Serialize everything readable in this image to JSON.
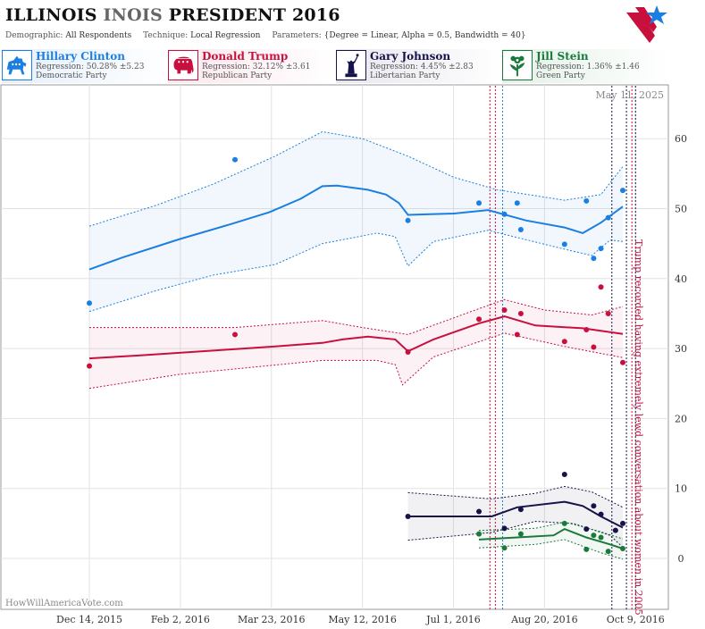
{
  "header": {
    "title_state": "ILLINOIS",
    "title_state_dup": "INOIS",
    "title_rest": "PRESIDENT 2016",
    "demographic_label": "Demographic:",
    "demographic_value": "All Respondents",
    "technique_label": "Technique:",
    "technique_value": "Local Regression",
    "parameters_label": "Parameters:",
    "parameters_value": "{Degree = Linear, Alpha = 0.5, Bandwidth = 40}"
  },
  "candidates": [
    {
      "name": "Hillary Clinton",
      "regression": "Regression: 50.28% ±5.23",
      "party": "Democratic Party",
      "color": "#1a7fe0",
      "icon": "donkey-icon"
    },
    {
      "name": "Donald Trump",
      "regression": "Regression: 32.12% ±3.61",
      "party": "Republican Party",
      "color": "#c8103e",
      "icon": "elephant-icon"
    },
    {
      "name": "Gary Johnson",
      "regression": "Regression: 4.45% ±2.83",
      "party": "Libertarian Party",
      "color": "#16134a",
      "icon": "liberty-statue-icon"
    },
    {
      "name": "Jill Stein",
      "regression": "Regression: 1.36% ±1.46",
      "party": "Green Party",
      "color": "#1a7a3c",
      "icon": "flower-icon"
    }
  ],
  "watermark": "HowWillAmericaVote.com",
  "date_stamp": "May 11, 2025",
  "chart_data": {
    "type": "scatter",
    "x_type": "date",
    "x_ticks": [
      "Dec 14, 2015",
      "Feb 2, 2016",
      "Mar 23, 2016",
      "May 12, 2016",
      "Jul 1, 2016",
      "Aug 20, 2016",
      "Oct 9, 2016"
    ],
    "y_ticks": [
      0,
      10,
      20,
      30,
      40,
      50,
      60
    ],
    "xlim": [
      "2015-12-14",
      "2016-11-08"
    ],
    "ylim": [
      -4,
      70
    ],
    "grid": true,
    "annotation": "Trump recorded having extremely lewd conversation about women in 2005",
    "series": [
      {
        "name": "Hillary Clinton",
        "color": "#1a7fe0",
        "points": [
          [
            "2015-12-14",
            36.5
          ],
          [
            "2016-03-03",
            57.0
          ],
          [
            "2016-06-06",
            48.3
          ],
          [
            "2016-07-15",
            50.8
          ],
          [
            "2016-07-29",
            49.2
          ],
          [
            "2016-08-05",
            50.8
          ],
          [
            "2016-08-07",
            47.0
          ],
          [
            "2016-08-31",
            44.9
          ],
          [
            "2016-09-12",
            51.1
          ],
          [
            "2016-09-16",
            42.9
          ],
          [
            "2016-09-20",
            44.3
          ],
          [
            "2016-09-24",
            48.7
          ],
          [
            "2016-10-02",
            52.6
          ]
        ],
        "trend": [
          [
            "2015-12-14",
            41.3
          ],
          [
            "2016-01-01",
            43.0
          ],
          [
            "2016-02-01",
            45.6
          ],
          [
            "2016-03-01",
            47.8
          ],
          [
            "2016-03-22",
            49.5
          ],
          [
            "2016-04-08",
            51.4
          ],
          [
            "2016-04-20",
            53.2
          ],
          [
            "2016-04-28",
            53.3
          ],
          [
            "2016-05-15",
            52.7
          ],
          [
            "2016-05-25",
            52.0
          ],
          [
            "2016-06-01",
            50.8
          ],
          [
            "2016-06-06",
            49.1
          ],
          [
            "2016-06-18",
            49.2
          ],
          [
            "2016-07-01",
            49.3
          ],
          [
            "2016-07-20",
            49.8
          ],
          [
            "2016-08-10",
            48.3
          ],
          [
            "2016-08-31",
            47.3
          ],
          [
            "2016-09-10",
            46.5
          ],
          [
            "2016-09-20",
            48.0
          ],
          [
            "2016-10-02",
            50.3
          ]
        ],
        "upper": [
          [
            "2015-12-14",
            47.5
          ],
          [
            "2016-01-20",
            50.5
          ],
          [
            "2016-02-20",
            53.5
          ],
          [
            "2016-03-25",
            57.5
          ],
          [
            "2016-04-20",
            61.0
          ],
          [
            "2016-05-12",
            60.0
          ],
          [
            "2016-06-06",
            57.5
          ],
          [
            "2016-07-01",
            54.5
          ],
          [
            "2016-07-25",
            52.7
          ],
          [
            "2016-08-31",
            51.2
          ],
          [
            "2016-09-20",
            52.0
          ],
          [
            "2016-10-02",
            56.0
          ]
        ],
        "lower": [
          [
            "2015-12-14",
            35.3
          ],
          [
            "2016-01-20",
            38.3
          ],
          [
            "2016-02-20",
            40.5
          ],
          [
            "2016-03-25",
            42.0
          ],
          [
            "2016-04-20",
            45.0
          ],
          [
            "2016-05-20",
            46.5
          ],
          [
            "2016-05-30",
            46.0
          ],
          [
            "2016-06-06",
            41.8
          ],
          [
            "2016-06-20",
            45.3
          ],
          [
            "2016-07-20",
            46.9
          ],
          [
            "2016-08-31",
            44.2
          ],
          [
            "2016-09-15",
            43.3
          ],
          [
            "2016-09-25",
            45.5
          ],
          [
            "2016-10-02",
            45.3
          ]
        ]
      },
      {
        "name": "Donald Trump",
        "color": "#c8103e",
        "points": [
          [
            "2015-12-14",
            27.5
          ],
          [
            "2016-03-03",
            32.0
          ],
          [
            "2016-06-06",
            29.5
          ],
          [
            "2016-07-15",
            34.2
          ],
          [
            "2016-07-29",
            35.5
          ],
          [
            "2016-08-05",
            32.0
          ],
          [
            "2016-08-07",
            35.0
          ],
          [
            "2016-08-31",
            31.0
          ],
          [
            "2016-09-12",
            32.7
          ],
          [
            "2016-09-16",
            30.2
          ],
          [
            "2016-09-20",
            38.8
          ],
          [
            "2016-09-24",
            35.0
          ],
          [
            "2016-10-02",
            28.0
          ]
        ],
        "trend": [
          [
            "2015-12-14",
            28.6
          ],
          [
            "2016-01-10",
            29.0
          ],
          [
            "2016-02-20",
            29.7
          ],
          [
            "2016-03-25",
            30.3
          ],
          [
            "2016-04-20",
            30.8
          ],
          [
            "2016-05-01",
            31.3
          ],
          [
            "2016-05-15",
            31.7
          ],
          [
            "2016-05-30",
            31.3
          ],
          [
            "2016-06-06",
            29.6
          ],
          [
            "2016-06-20",
            31.3
          ],
          [
            "2016-07-15",
            33.6
          ],
          [
            "2016-07-29",
            34.6
          ],
          [
            "2016-08-15",
            33.3
          ],
          [
            "2016-09-10",
            32.9
          ],
          [
            "2016-10-02",
            32.1
          ]
        ],
        "upper": [
          [
            "2015-12-14",
            33.0
          ],
          [
            "2016-03-03",
            33.0
          ],
          [
            "2016-04-20",
            34.0
          ],
          [
            "2016-05-12",
            33.0
          ],
          [
            "2016-06-06",
            32.0
          ],
          [
            "2016-07-15",
            35.7
          ],
          [
            "2016-07-29",
            37.0
          ],
          [
            "2016-08-20",
            35.5
          ],
          [
            "2016-09-15",
            34.8
          ],
          [
            "2016-10-02",
            36.0
          ]
        ],
        "lower": [
          [
            "2015-12-14",
            24.3
          ],
          [
            "2016-02-01",
            26.3
          ],
          [
            "2016-04-20",
            28.3
          ],
          [
            "2016-05-20",
            28.3
          ],
          [
            "2016-05-30",
            27.7
          ],
          [
            "2016-06-03",
            24.8
          ],
          [
            "2016-06-20",
            28.8
          ],
          [
            "2016-07-29",
            32.2
          ],
          [
            "2016-08-31",
            30.3
          ],
          [
            "2016-09-20",
            29.3
          ],
          [
            "2016-10-02",
            28.7
          ]
        ]
      },
      {
        "name": "Gary Johnson",
        "color": "#16134a",
        "points": [
          [
            "2016-06-06",
            6.0
          ],
          [
            "2016-07-15",
            6.7
          ],
          [
            "2016-07-29",
            4.3
          ],
          [
            "2016-08-07",
            7.0
          ],
          [
            "2016-08-31",
            12.0
          ],
          [
            "2016-09-12",
            4.2
          ],
          [
            "2016-09-16",
            7.5
          ],
          [
            "2016-09-20",
            6.3
          ],
          [
            "2016-09-28",
            4.0
          ],
          [
            "2016-10-02",
            5.0
          ]
        ],
        "trend": [
          [
            "2016-06-06",
            6.0
          ],
          [
            "2016-07-01",
            6.0
          ],
          [
            "2016-07-22",
            6.0
          ],
          [
            "2016-08-05",
            7.3
          ],
          [
            "2016-08-31",
            8.1
          ],
          [
            "2016-09-10",
            7.5
          ],
          [
            "2016-09-20",
            6.0
          ],
          [
            "2016-10-02",
            4.4
          ]
        ],
        "upper": [
          [
            "2016-06-06",
            9.4
          ],
          [
            "2016-07-22",
            8.5
          ],
          [
            "2016-08-15",
            9.3
          ],
          [
            "2016-08-31",
            10.3
          ],
          [
            "2016-09-15",
            9.5
          ],
          [
            "2016-10-02",
            7.3
          ]
        ],
        "lower": [
          [
            "2016-06-06",
            2.6
          ],
          [
            "2016-07-22",
            3.7
          ],
          [
            "2016-08-15",
            5.3
          ],
          [
            "2016-09-05",
            5.0
          ],
          [
            "2016-09-25",
            3.3
          ],
          [
            "2016-10-02",
            1.6
          ]
        ]
      },
      {
        "name": "Jill Stein",
        "color": "#1a7a3c",
        "points": [
          [
            "2016-07-15",
            3.5
          ],
          [
            "2016-07-29",
            1.5
          ],
          [
            "2016-08-07",
            3.5
          ],
          [
            "2016-08-31",
            5.0
          ],
          [
            "2016-09-12",
            1.3
          ],
          [
            "2016-09-16",
            3.3
          ],
          [
            "2016-09-20",
            3.0
          ],
          [
            "2016-09-24",
            1.0
          ],
          [
            "2016-10-02",
            1.4
          ]
        ],
        "trend": [
          [
            "2016-07-15",
            2.7
          ],
          [
            "2016-08-05",
            3.0
          ],
          [
            "2016-08-25",
            3.3
          ],
          [
            "2016-08-31",
            4.2
          ],
          [
            "2016-09-12",
            3.0
          ],
          [
            "2016-09-25",
            2.0
          ],
          [
            "2016-10-02",
            1.4
          ]
        ],
        "upper": [
          [
            "2016-07-15",
            4.0
          ],
          [
            "2016-08-15",
            4.3
          ],
          [
            "2016-08-31",
            5.2
          ],
          [
            "2016-09-20",
            3.8
          ],
          [
            "2016-10-02",
            2.8
          ]
        ],
        "lower": [
          [
            "2016-07-15",
            1.5
          ],
          [
            "2016-08-15",
            2.0
          ],
          [
            "2016-08-31",
            2.7
          ],
          [
            "2016-09-20",
            0.8
          ],
          [
            "2016-10-02",
            -0.1
          ]
        ]
      }
    ],
    "event_lines": [
      {
        "date": "2016-07-21",
        "color": "#c8103e"
      },
      {
        "date": "2016-07-24",
        "color": "#c8103e"
      },
      {
        "date": "2016-07-28",
        "color": "#1a7fe0"
      },
      {
        "date": "2016-09-26",
        "color": "#16134a"
      },
      {
        "date": "2016-10-04",
        "color": "#16134a"
      },
      {
        "date": "2016-10-07",
        "color": "#c8103e"
      },
      {
        "date": "2016-10-09",
        "color": "#16134a"
      }
    ]
  }
}
